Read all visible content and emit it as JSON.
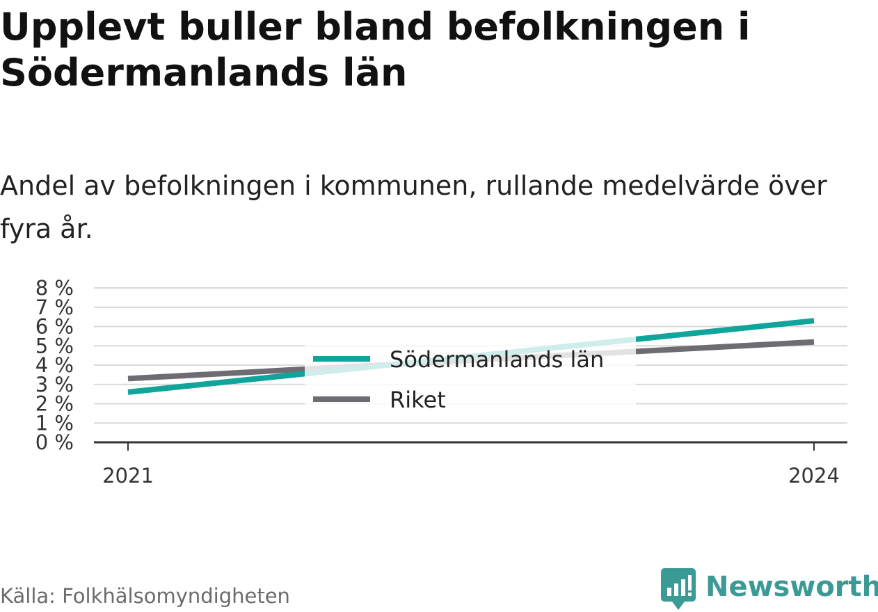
{
  "title": "Upplevt buller bland befolkningen i Södermanlands län",
  "subtitle": "Andel av befolkningen i kommunen, rullande medelvärde över fyra år.",
  "source": "Källa: Folkhälsomyndigheten",
  "brand": {
    "name": "Newsworthy",
    "icon": "newsworthy-logo-icon",
    "color": "#3a9a95"
  },
  "chart_data": {
    "type": "line",
    "x": [
      2021,
      2024
    ],
    "x_tick_labels": [
      "2021",
      "2024"
    ],
    "y_ticks": [
      0,
      1,
      2,
      3,
      4,
      5,
      6,
      7,
      8
    ],
    "y_tick_labels": [
      "0 %",
      "1 %",
      "2 %",
      "3 %",
      "4 %",
      "5 %",
      "6 %",
      "7 %",
      "8 %"
    ],
    "ylim": [
      0,
      8
    ],
    "grid": true,
    "legend_position": "center",
    "series": [
      {
        "name": "Södermanlands län",
        "color": "#0fa59b",
        "values": [
          2.6,
          6.3
        ]
      },
      {
        "name": "Riket",
        "color": "#6e6c72",
        "values": [
          3.3,
          5.2
        ]
      }
    ]
  }
}
